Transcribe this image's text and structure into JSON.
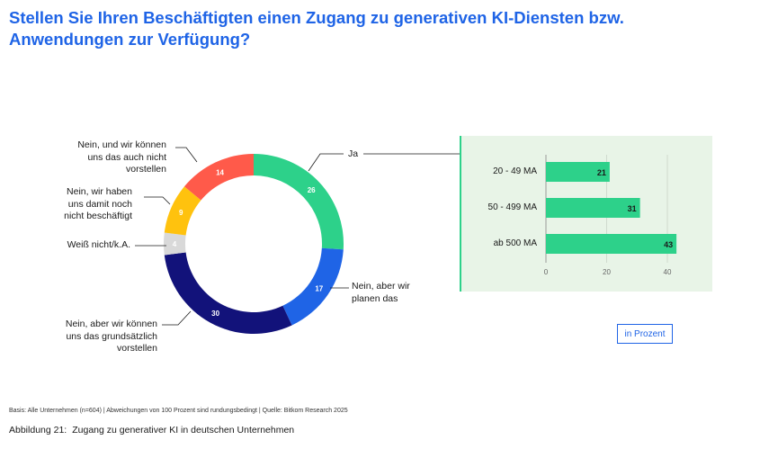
{
  "title": {
    "line1": "Stellen Sie Ihren Beschäftigten einen Zugang zu generativen KI-Diensten bzw.",
    "line2": "Anwendungen zur Verfügung?"
  },
  "chart_data": [
    {
      "type": "pie",
      "variant": "donut",
      "slices": [
        {
          "label": [
            "Ja"
          ],
          "value": 26,
          "color": "#2dd18a"
        },
        {
          "label": [
            "Nein, aber wir",
            "planen das"
          ],
          "value": 17,
          "color": "#1f64e6"
        },
        {
          "label": [
            "Nein, aber wir können",
            "uns das grundsätzlich",
            "vorstellen"
          ],
          "value": 30,
          "color": "#12127a"
        },
        {
          "label": [
            "Weiß nicht/k.A."
          ],
          "value": 4,
          "color": "#d9d9d9"
        },
        {
          "label": [
            "Nein, wir haben",
            "uns damit noch",
            "nicht beschäftigt"
          ],
          "value": 9,
          "color": "#ffc20e"
        },
        {
          "label": [
            "Nein, und wir können",
            "uns das auch nicht",
            "vorstellen"
          ],
          "value": 14,
          "color": "#ff5a4a"
        }
      ]
    },
    {
      "type": "bar",
      "orientation": "horizontal",
      "categories": [
        "20 - 49 MA",
        "50 - 499 MA",
        "ab 500 MA"
      ],
      "values": [
        21,
        31,
        43
      ],
      "xlim": [
        0,
        45
      ],
      "xticks": [
        "0",
        "20",
        "40"
      ],
      "grid": true,
      "color": "#2dd18a"
    }
  ],
  "unit_label": "in Prozent",
  "footnote": "Basis: Alle Unternehmen (n=604) | Abweichungen von 100 Prozent sind rundungsbedingt | Quelle: Bitkom Research 2025",
  "caption": {
    "number": "Abbildung 21:",
    "text": "Zugang zu generativer KI in deutschen Unternehmen"
  }
}
